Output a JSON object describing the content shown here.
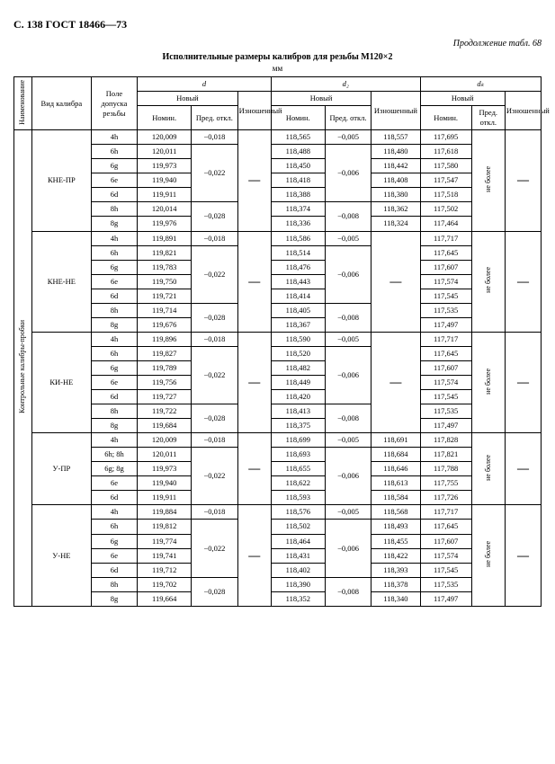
{
  "header": "С. 138 ГОСТ 18466—73",
  "cont": "Продолжение табл. 68",
  "title": "Исполнительные размеры калибров для резьбы M120×2",
  "unit": "мм",
  "cols": {
    "vert_group": "Наименование",
    "kind": "Вид калибра",
    "field": "Поле допуска резьбы",
    "d": "d",
    "d2": "d₂",
    "dk": "dₖ",
    "new": "Новый",
    "worn": "Изношенный",
    "nom": "Номин.",
    "dev": "Пред. откл.",
    "ne_bolee": "не более"
  },
  "vert_big": "Контрольные калибры-пробки",
  "dash": "—",
  "groups": [
    {
      "name": "КНЕ-ПР",
      "rows": [
        {
          "f": "4h",
          "dN": "120,009",
          "dD": "−0,018",
          "d2N": "118,565",
          "d2D": "−0,005",
          "d2W": "118,557",
          "dkN": "117,695"
        },
        {
          "f": "6h",
          "dN": "120,011",
          "dD": "",
          "d2N": "118,488",
          "d2D": "",
          "d2W": "118,480",
          "dkN": "117,618"
        },
        {
          "f": "6g",
          "dN": "119,973",
          "dD": "−0,022",
          "d2N": "118,450",
          "d2D": "−0,006",
          "d2W": "118,442",
          "dkN": "117,580"
        },
        {
          "f": "6e",
          "dN": "119,940",
          "dD": "",
          "d2N": "118,418",
          "d2D": "",
          "d2W": "118,408",
          "dkN": "117,547"
        },
        {
          "f": "6d",
          "dN": "119,911",
          "dD": "",
          "d2N": "118,388",
          "d2D": "",
          "d2W": "118,380",
          "dkN": "117,518"
        },
        {
          "f": "8h",
          "dN": "120,014",
          "dD": "−0,028",
          "d2N": "118,374",
          "d2D": "−0,008",
          "d2W": "118,362",
          "dkN": "117,502"
        },
        {
          "f": "8g",
          "dN": "119,976",
          "dD": "",
          "d2N": "118,336",
          "d2D": "",
          "d2W": "118,324",
          "dkN": "117,464"
        }
      ]
    },
    {
      "name": "КНЕ-НЕ",
      "rows": [
        {
          "f": "4h",
          "dN": "119,891",
          "dD": "−0,018",
          "d2N": "118,586",
          "d2D": "−0,005",
          "d2W": "—",
          "dkN": "117,717"
        },
        {
          "f": "6h",
          "dN": "119,821",
          "dD": "",
          "d2N": "118,514",
          "d2D": "",
          "d2W": "",
          "dkN": "117,645"
        },
        {
          "f": "6g",
          "dN": "119,783",
          "dD": "−0,022",
          "d2N": "118,476",
          "d2D": "−0,006",
          "d2W": "",
          "dkN": "117,607"
        },
        {
          "f": "6e",
          "dN": "119,750",
          "dD": "",
          "d2N": "118,443",
          "d2D": "",
          "d2W": "",
          "dkN": "117,574"
        },
        {
          "f": "6d",
          "dN": "119,721",
          "dD": "",
          "d2N": "118,414",
          "d2D": "",
          "d2W": "",
          "dkN": "117,545"
        },
        {
          "f": "8h",
          "dN": "119,714",
          "dD": "−0,028",
          "d2N": "118,405",
          "d2D": "−0,008",
          "d2W": "",
          "dkN": "117,535"
        },
        {
          "f": "8g",
          "dN": "119,676",
          "dD": "",
          "d2N": "118,367",
          "d2D": "",
          "d2W": "",
          "dkN": "117,497"
        }
      ]
    },
    {
      "name": "КИ-НЕ",
      "rows": [
        {
          "f": "4h",
          "dN": "119,896",
          "dD": "−0,018",
          "d2N": "118,590",
          "d2D": "−0,005",
          "d2W": "—",
          "dkN": "117,717"
        },
        {
          "f": "6h",
          "dN": "119,827",
          "dD": "",
          "d2N": "118,520",
          "d2D": "",
          "d2W": "",
          "dkN": "117,645"
        },
        {
          "f": "6g",
          "dN": "119,789",
          "dD": "−0,022",
          "d2N": "118,482",
          "d2D": "−0,006",
          "d2W": "",
          "dkN": "117,607"
        },
        {
          "f": "6e",
          "dN": "119,756",
          "dD": "",
          "d2N": "118,449",
          "d2D": "",
          "d2W": "",
          "dkN": "117,574"
        },
        {
          "f": "6d",
          "dN": "119,727",
          "dD": "",
          "d2N": "118,420",
          "d2D": "",
          "d2W": "",
          "dkN": "117,545"
        },
        {
          "f": "8h",
          "dN": "119,722",
          "dD": "−0,028",
          "d2N": "118,413",
          "d2D": "−0,008",
          "d2W": "",
          "dkN": "117,535"
        },
        {
          "f": "8g",
          "dN": "119,684",
          "dD": "",
          "d2N": "118,375",
          "d2D": "",
          "d2W": "",
          "dkN": "117,497"
        }
      ]
    },
    {
      "name": "У-ПР",
      "rows": [
        {
          "f": "4h",
          "dN": "120,009",
          "dD": "−0,018",
          "d2N": "118,699",
          "d2D": "−0,005",
          "d2W": "118,691",
          "dkN": "117,828"
        },
        {
          "f": "6h; 8h",
          "dN": "120,011",
          "dD": "",
          "d2N": "118,693",
          "d2D": "",
          "d2W": "118,684",
          "dkN": "117,821"
        },
        {
          "f": "6g; 8g",
          "dN": "119,973",
          "dD": "−0,022",
          "d2N": "118,655",
          "d2D": "−0,006",
          "d2W": "118,646",
          "dkN": "117,788"
        },
        {
          "f": "6e",
          "dN": "119,940",
          "dD": "",
          "d2N": "118,622",
          "d2D": "",
          "d2W": "118,613",
          "dkN": "117,755"
        },
        {
          "f": "6d",
          "dN": "119,911",
          "dD": "",
          "d2N": "118,593",
          "d2D": "",
          "d2W": "118,584",
          "dkN": "117,726"
        }
      ]
    },
    {
      "name": "У-НЕ",
      "rows": [
        {
          "f": "4h",
          "dN": "119,884",
          "dD": "−0,018",
          "d2N": "118,576",
          "d2D": "−0,005",
          "d2W": "118,568",
          "dkN": "117,717"
        },
        {
          "f": "6h",
          "dN": "119,812",
          "dD": "",
          "d2N": "118,502",
          "d2D": "",
          "d2W": "118,493",
          "dkN": "117,645"
        },
        {
          "f": "6g",
          "dN": "119,774",
          "dD": "−0,022",
          "d2N": "118,464",
          "d2D": "−0,006",
          "d2W": "118,455",
          "dkN": "117,607"
        },
        {
          "f": "6e",
          "dN": "119,741",
          "dD": "",
          "d2N": "118,431",
          "d2D": "",
          "d2W": "118,422",
          "dkN": "117,574"
        },
        {
          "f": "6d",
          "dN": "119,712",
          "dD": "",
          "d2N": "118,402",
          "d2D": "",
          "d2W": "118,393",
          "dkN": "117,545"
        },
        {
          "f": "8h",
          "dN": "119,702",
          "dD": "−0,028",
          "d2N": "118,390",
          "d2D": "−0,008",
          "d2W": "118,378",
          "dkN": "117,535"
        },
        {
          "f": "8g",
          "dN": "119,664",
          "dD": "",
          "d2N": "118,352",
          "d2D": "",
          "d2W": "118,340",
          "dkN": "117,497"
        }
      ]
    }
  ]
}
